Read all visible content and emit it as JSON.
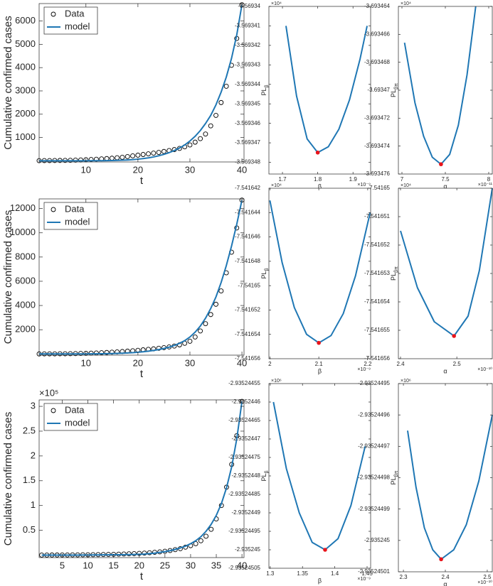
{
  "chart_data": [
    {
      "type": "line",
      "xlabel": "t",
      "ylabel": "Cumulative confirmed cases",
      "legend": "upper left",
      "x": [
        1,
        2,
        3,
        4,
        5,
        6,
        7,
        8,
        9,
        10,
        11,
        12,
        13,
        14,
        15,
        16,
        17,
        18,
        19,
        20,
        21,
        22,
        23,
        24,
        25,
        26,
        27,
        28,
        29,
        30,
        31,
        32,
        33,
        34,
        35,
        36,
        37,
        38,
        39,
        40
      ],
      "series": [
        {
          "name": "Data",
          "color": "#000000",
          "marker": "circle",
          "values": [
            5,
            8,
            10,
            12,
            15,
            18,
            22,
            28,
            35,
            45,
            55,
            65,
            80,
            95,
            110,
            130,
            150,
            180,
            210,
            240,
            270,
            300,
            330,
            360,
            400,
            440,
            480,
            530,
            600,
            680,
            800,
            950,
            1150,
            1500,
            1950,
            2500,
            3200,
            4100,
            5250,
            6700
          ]
        },
        {
          "name": "model",
          "color": "#1f77b4",
          "linestyle": "solid",
          "values": [
            0,
            0,
            0,
            0,
            0,
            0,
            0,
            0,
            0,
            1,
            2,
            3,
            5,
            8,
            12,
            18,
            25,
            35,
            50,
            70,
            95,
            125,
            165,
            215,
            275,
            350,
            440,
            550,
            680,
            850,
            1050,
            1300,
            1600,
            1950,
            2400,
            2950,
            3600,
            4400,
            5400,
            6700
          ]
        }
      ],
      "xlim": [
        1,
        40.4
      ],
      "xticks": [
        10,
        20,
        30,
        40
      ],
      "ylim": [
        -50,
        6750
      ],
      "yticks": [
        1000,
        2000,
        3000,
        4000,
        5000,
        6000
      ]
    },
    {
      "type": "line",
      "xlabel": "β",
      "x_multiplier": "×10⁻⁹",
      "ylabel": "PL",
      "ylabel_sub": "β",
      "y_multiplier": "×10⁴",
      "color": "#1f77b4",
      "x": [
        1.71,
        1.74,
        1.77,
        1.8,
        1.83,
        1.86,
        1.89,
        1.92,
        1.94
      ],
      "values": [
        -3.569341,
        -3.5693446,
        -3.5693468,
        -3.5693475,
        -3.5693472,
        -3.5693463,
        -3.5693448,
        -3.5693427,
        -3.569341
      ],
      "optimum": {
        "x": 1.8,
        "y": -3.5693475,
        "color": "#e8141b"
      },
      "xlim": [
        1.6616,
        1.95
      ],
      "xticks": [
        1.7,
        1.8,
        1.9
      ],
      "ylim": [
        -3.5693486,
        -3.56934
      ],
      "yticks": [
        -3.56934,
        -3.569341,
        -3.569342,
        -3.569343,
        -3.569344,
        -3.569345,
        -3.569346,
        -3.569347,
        -3.569348
      ]
    },
    {
      "type": "line",
      "xlabel": "α",
      "x_multiplier": "×10⁻¹¹",
      "ylabel": "PL",
      "ylabel_sub": "βπ",
      "y_multiplier": "×10⁴",
      "color": "#1f77b4",
      "x": [
        7.03,
        7.15,
        7.25,
        7.35,
        7.45,
        7.55,
        7.65,
        7.75,
        7.85
      ],
      "values": [
        -3.6934666,
        -3.6934709,
        -3.6934733,
        -3.6934748,
        -3.6934753,
        -3.6934746,
        -3.6934725,
        -3.6934689,
        -3.693464
      ],
      "optimum": {
        "x": 7.45,
        "y": -3.6934753,
        "color": "#e8141b"
      },
      "xlim": [
        6.959,
        8.041
      ],
      "xticks": [
        7,
        7.5,
        8
      ],
      "ylim": [
        -3.693476,
        -3.693464
      ],
      "yticks": [
        -3.693464,
        -3.693466,
        -3.693468,
        -3.69347,
        -3.693472,
        -3.693474,
        -3.693476
      ]
    },
    {
      "type": "line",
      "xlabel": "t",
      "ylabel": "Cumulative confirmed cases",
      "legend": "upper left",
      "x": [
        1,
        2,
        3,
        4,
        5,
        6,
        7,
        8,
        9,
        10,
        11,
        12,
        13,
        14,
        15,
        16,
        17,
        18,
        19,
        20,
        21,
        22,
        23,
        24,
        25,
        26,
        27,
        28,
        29,
        30,
        31,
        32,
        33,
        34,
        35,
        36,
        37,
        38,
        39,
        40
      ],
      "series": [
        {
          "name": "Data",
          "color": "#000000",
          "marker": "circle",
          "values": [
            2,
            4,
            6,
            8,
            12,
            16,
            22,
            30,
            40,
            50,
            65,
            80,
            100,
            120,
            145,
            170,
            200,
            230,
            260,
            300,
            340,
            380,
            420,
            470,
            520,
            580,
            650,
            750,
            880,
            1050,
            1400,
            1900,
            2500,
            3250,
            4100,
            5200,
            6700,
            8400,
            10400,
            12700
          ]
        },
        {
          "name": "model",
          "color": "#1f77b4",
          "linestyle": "solid",
          "values": [
            0,
            0,
            0,
            0,
            0,
            0,
            1,
            2,
            3,
            5,
            8,
            12,
            17,
            24,
            33,
            45,
            60,
            80,
            105,
            140,
            180,
            230,
            290,
            360,
            450,
            560,
            700,
            880,
            1100,
            1400,
            1800,
            2300,
            2950,
            3750,
            4700,
            5900,
            7300,
            8900,
            10700,
            12700
          ]
        }
      ],
      "xlim": [
        1,
        40.4
      ],
      "xticks": [
        10,
        20,
        30,
        40
      ],
      "ylim": [
        -100,
        12800
      ],
      "yticks": [
        2000,
        4000,
        6000,
        8000,
        10000,
        12000
      ]
    },
    {
      "type": "line",
      "xlabel": "β",
      "x_multiplier": "×10⁻⁹",
      "ylabel": "PL",
      "ylabel_sub": "β",
      "y_multiplier": "×10⁴",
      "color": "#1f77b4",
      "x": [
        2.0,
        2.025,
        2.05,
        2.075,
        2.1,
        2.125,
        2.15,
        2.175,
        2.205
      ],
      "values": [
        -7.541643,
        -7.5416481,
        -7.5416518,
        -7.541654,
        -7.5416547,
        -7.5416541,
        -7.5416523,
        -7.5416492,
        -7.541644
      ],
      "optimum": {
        "x": 2.1,
        "y": -7.5416547,
        "color": "#e8141b"
      },
      "xlim": [
        1.998,
        2.206
      ],
      "xticks": [
        2,
        2.1,
        2.2
      ],
      "ylim": [
        -7.541656,
        -7.541642
      ],
      "yticks": [
        -7.541642,
        -7.541644,
        -7.541646,
        -7.541648,
        -7.54165,
        -7.541652,
        -7.541654,
        -7.541656
      ]
    },
    {
      "type": "line",
      "xlabel": "α",
      "x_multiplier": "×10⁻¹⁰",
      "ylabel": "PL",
      "ylabel_sub": "βπ",
      "y_multiplier": "×10⁴",
      "color": "#1f77b4",
      "x": [
        2.4,
        2.43,
        2.46,
        2.495,
        2.52,
        2.54,
        2.563
      ],
      "values": [
        -7.5416515,
        -7.5416535,
        -7.5416547,
        -7.5416552,
        -7.5416545,
        -7.5416529,
        -7.54165
      ],
      "optimum": {
        "x": 2.495,
        "y": -7.5416552,
        "color": "#e8141b"
      },
      "xlim": [
        2.3962,
        2.563
      ],
      "xticks": [
        2.4,
        2.5
      ],
      "ylim": [
        -7.541656,
        -7.54165
      ],
      "yticks": [
        -7.54165,
        -7.541651,
        -7.541652,
        -7.541653,
        -7.541654,
        -7.541655,
        -7.541656
      ]
    },
    {
      "type": "line",
      "xlabel": "t",
      "ylabel": "Cumulative confirmed cases",
      "y_multiplier": "×10⁵",
      "legend": "upper left",
      "x": [
        1,
        2,
        3,
        4,
        5,
        6,
        7,
        8,
        9,
        10,
        11,
        12,
        13,
        14,
        15,
        16,
        17,
        18,
        19,
        20,
        21,
        22,
        23,
        24,
        25,
        26,
        27,
        28,
        29,
        30,
        31,
        32,
        33,
        34,
        35,
        36,
        37,
        38,
        39,
        40
      ],
      "series": [
        {
          "name": "Data",
          "color": "#000000",
          "marker": "circle",
          "values": [
            0.001,
            0.001,
            0.002,
            0.002,
            0.003,
            0.003,
            0.004,
            0.005,
            0.006,
            0.007,
            0.008,
            0.01,
            0.012,
            0.014,
            0.016,
            0.019,
            0.022,
            0.026,
            0.03,
            0.035,
            0.04,
            0.048,
            0.056,
            0.066,
            0.078,
            0.092,
            0.11,
            0.13,
            0.16,
            0.19,
            0.23,
            0.29,
            0.38,
            0.52,
            0.73,
            1.0,
            1.37,
            1.83,
            2.41,
            3.1
          ]
        },
        {
          "name": "model",
          "color": "#1f77b4",
          "linestyle": "solid",
          "values": [
            0,
            0,
            0,
            0,
            0,
            0,
            0.001,
            0.001,
            0.002,
            0.002,
            0.003,
            0.004,
            0.005,
            0.006,
            0.007,
            0.008,
            0.009,
            0.011,
            0.013,
            0.016,
            0.02,
            0.03,
            0.04,
            0.055,
            0.07,
            0.09,
            0.115,
            0.145,
            0.18,
            0.23,
            0.29,
            0.37,
            0.48,
            0.62,
            0.8,
            1.04,
            1.36,
            1.78,
            2.35,
            3.1
          ]
        }
      ],
      "xlim": [
        0.5,
        40.4
      ],
      "xticks": [
        5,
        10,
        15,
        20,
        25,
        30,
        35,
        40
      ],
      "ylim": [
        -0.05,
        3.13
      ],
      "yticks": [
        0.5,
        1,
        1.5,
        2,
        2.5,
        3
      ]
    },
    {
      "type": "line",
      "xlabel": "β",
      "x_multiplier": "×10⁻⁹",
      "ylabel": "PL",
      "ylabel_sub": "β",
      "y_multiplier": "×10⁶",
      "color": "#1f77b4",
      "x": [
        1.305,
        1.325,
        1.345,
        1.365,
        1.385,
        1.405,
        1.425,
        1.447
      ],
      "values": [
        -2.9352446,
        -2.93524478,
        -2.9352449,
        -2.93524498,
        -2.935245,
        -2.93524497,
        -2.93524488,
        -2.93524472
      ],
      "optimum": {
        "x": 1.385,
        "y": -2.935245,
        "color": "#e8141b"
      },
      "xlim": [
        1.298,
        1.4555
      ],
      "xticks": [
        1.3,
        1.35,
        1.4,
        1.45
      ],
      "ylim": [
        -2.93524505,
        -2.93524455
      ],
      "yticks": [
        -2.93524455,
        -2.9352446,
        -2.93524465,
        -2.9352447,
        -2.93524475,
        -2.9352448,
        -2.93524485,
        -2.9352449,
        -2.93524495,
        -2.935245,
        -2.93524505
      ]
    },
    {
      "type": "line",
      "xlabel": "α",
      "x_multiplier": "×10⁻¹⁰",
      "ylabel": "PL",
      "ylabel_sub": "βπ",
      "y_multiplier": "×10⁶",
      "color": "#1f77b4",
      "x": [
        2.31,
        2.33,
        2.35,
        2.37,
        2.39,
        2.42,
        2.45,
        2.48,
        2.512
      ],
      "values": [
        -2.935244965,
        -2.935244983,
        -2.935244996,
        -2.935245003,
        -2.935245006,
        -2.935245003,
        -2.935244995,
        -2.935244981,
        -2.93524496
      ],
      "optimum": {
        "x": 2.39,
        "y": -2.935245006,
        "color": "#e8141b"
      },
      "xlim": [
        2.288,
        2.512
      ],
      "xticks": [
        2.3,
        2.4,
        2.5
      ],
      "ylim": [
        -2.93524501,
        -2.93524495
      ],
      "yticks": [
        -2.93524495,
        -2.93524496,
        -2.93524497,
        -2.93524498,
        -2.93524499,
        -2.935245,
        -2.93524501
      ]
    }
  ]
}
